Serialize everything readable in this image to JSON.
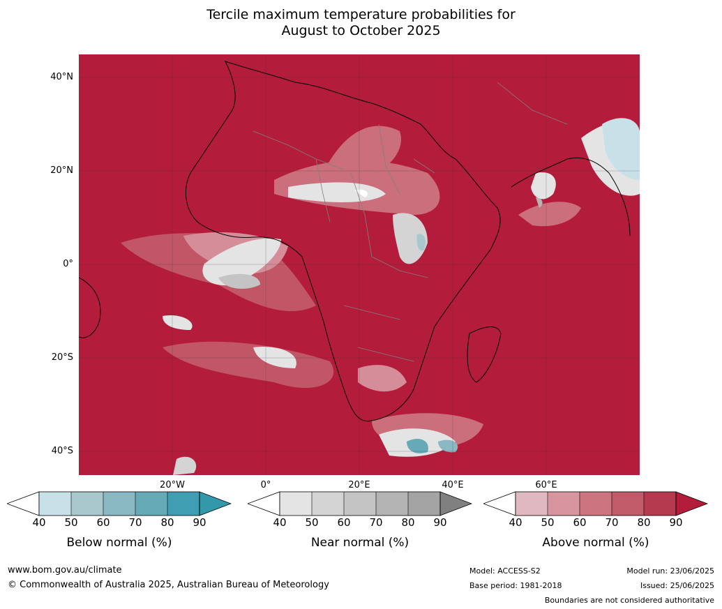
{
  "title_line1": "Tercile maximum temperature probabilities for",
  "title_line2": "August to October 2025",
  "lat_labels": [
    "40°N",
    "20°N",
    "0°",
    "20°S",
    "40°S"
  ],
  "lon_labels": [
    "20°W",
    "0°",
    "20°E",
    "40°E",
    "60°E"
  ],
  "colors": {
    "above_bg": "#b41c3c",
    "above": [
      "#e0b8bf",
      "#d7959f",
      "#cc747f",
      "#c15a69",
      "#b53a50"
    ],
    "near": [
      "#e4e4e4",
      "#d4d4d4",
      "#c4c4c4",
      "#b4b4b4",
      "#a4a4a4"
    ],
    "below": [
      "#c8e1e8",
      "#a8c8ce",
      "#8ab8c3",
      "#66aab8",
      "#3f9eb1"
    ],
    "land_outline": "#000000",
    "borders": "#808080"
  },
  "legend": [
    {
      "label": "Below normal (%)",
      "ticks": [
        "40",
        "50",
        "60",
        "70",
        "80",
        "90"
      ]
    },
    {
      "label": "Near normal (%)",
      "ticks": [
        "40",
        "50",
        "60",
        "70",
        "80",
        "90"
      ]
    },
    {
      "label": "Above normal (%)",
      "ticks": [
        "40",
        "50",
        "60",
        "70",
        "80",
        "90"
      ]
    }
  ],
  "footer": {
    "website": "www.bom.gov.au/climate",
    "copyright": "© Commonwealth of Australia 2025, Australian Bureau of Meteorology",
    "model": "Model: ACCESS-S2",
    "base_period": "Base period: 1981-2018",
    "model_run": "Model run: 23/06/2025",
    "issued": "Issued: 25/06/2025",
    "disclaimer": "Boundaries are not considered authoritative"
  }
}
